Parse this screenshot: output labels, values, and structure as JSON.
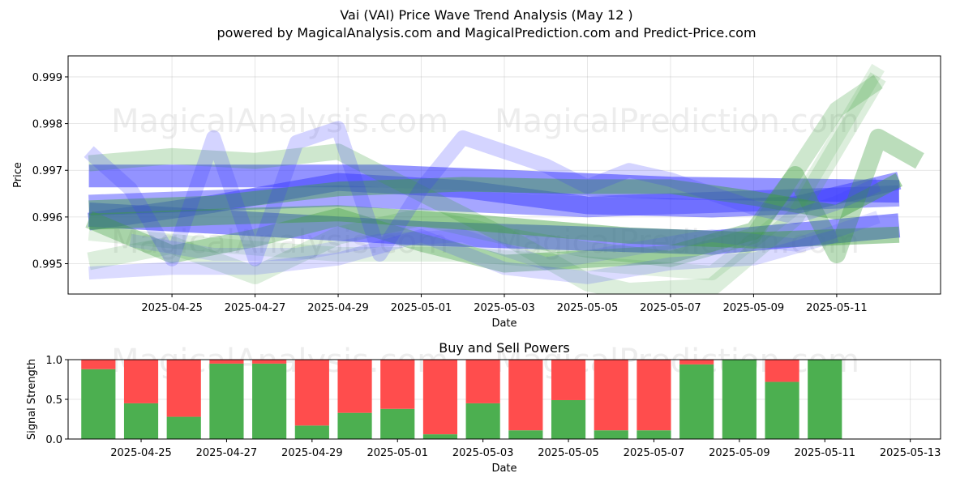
{
  "header": {
    "title": "Vai (VAI) Price Wave Trend Analysis (May 12 )",
    "subtitle": "powered by MagicalAnalysis.com and MagicalPrediction.com and Predict-Price.com"
  },
  "watermarks": [
    "MagicalAnalysis.com",
    "MagicalPrediction.com"
  ],
  "colors": {
    "buy": "#4caf50",
    "sell": "#ff4d4d",
    "blue": "#3a3aff",
    "green": "#3c9e3c"
  },
  "chart_data": [
    {
      "type": "line",
      "title": "",
      "xlabel": "Date",
      "ylabel": "Price",
      "ylim": [
        0.99435,
        0.99945
      ],
      "xlim": [
        "2025-04-22T12:00",
        "2025-05-13T12:00"
      ],
      "x_ticks": [
        "2025-04-25",
        "2025-04-27",
        "2025-04-29",
        "2025-05-01",
        "2025-05-03",
        "2025-05-05",
        "2025-05-07",
        "2025-05-09",
        "2025-05-11"
      ],
      "y_ticks": [
        "0.995",
        "0.996",
        "0.997",
        "0.998",
        "0.999"
      ],
      "grid": true,
      "series": [
        {
          "color": "blue",
          "opacity": 0.55,
          "width": 30,
          "points": [
            [
              "2025-04-23",
              0.99605
            ],
            [
              "2025-05-01",
              0.99565
            ],
            [
              "2025-05-08",
              0.99545
            ],
            [
              "2025-05-12T12:00",
              0.99582
            ]
          ]
        },
        {
          "color": "blue",
          "opacity": 0.55,
          "width": 28,
          "points": [
            [
              "2025-04-23",
              0.99688
            ],
            [
              "2025-04-30",
              0.99688
            ],
            [
              "2025-05-07",
              0.99662
            ],
            [
              "2025-05-12T12:00",
              0.99655
            ]
          ]
        },
        {
          "color": "blue",
          "opacity": 0.45,
          "width": 26,
          "points": [
            [
              "2025-04-23",
              0.99625
            ],
            [
              "2025-04-29",
              0.99645
            ],
            [
              "2025-05-05",
              0.99622
            ],
            [
              "2025-05-12T12:00",
              0.99645
            ]
          ]
        },
        {
          "color": "blue",
          "opacity": 0.5,
          "width": 22,
          "points": [
            [
              "2025-04-23",
              0.9959
            ],
            [
              "2025-04-26",
              0.99628
            ],
            [
              "2025-04-29",
              0.99675
            ],
            [
              "2025-05-02",
              0.9966
            ],
            [
              "2025-05-05",
              0.99625
            ],
            [
              "2025-05-08",
              0.99618
            ],
            [
              "2025-05-10",
              0.99625
            ],
            [
              "2025-05-12T12:00",
              0.99678
            ]
          ]
        },
        {
          "color": "green",
          "opacity": 0.45,
          "width": 20,
          "points": [
            [
              "2025-04-23",
              0.9959
            ],
            [
              "2025-04-26",
              0.996
            ],
            [
              "2025-04-29",
              0.99608
            ],
            [
              "2025-05-02",
              0.9959
            ],
            [
              "2025-05-06",
              0.9956
            ],
            [
              "2025-05-09",
              0.9955
            ],
            [
              "2025-05-12T12:00",
              0.99562
            ]
          ]
        },
        {
          "color": "green",
          "opacity": 0.45,
          "width": 18,
          "points": [
            [
              "2025-04-23",
              0.9962
            ],
            [
              "2025-04-26",
              0.9963
            ],
            [
              "2025-04-29",
              0.9966
            ],
            [
              "2025-05-02",
              0.9967
            ],
            [
              "2025-05-05",
              0.99665
            ],
            [
              "2025-05-07",
              0.99665
            ],
            [
              "2025-05-09",
              0.9964
            ],
            [
              "2025-05-11",
              0.9961
            ],
            [
              "2025-05-12T12:00",
              0.9968
            ]
          ]
        },
        {
          "color": "green",
          "opacity": 0.35,
          "width": 22,
          "points": [
            [
              "2025-04-23",
              0.99595
            ],
            [
              "2025-04-25",
              0.9952
            ],
            [
              "2025-04-27",
              0.99555
            ],
            [
              "2025-04-29",
              0.996
            ],
            [
              "2025-05-01",
              0.99545
            ],
            [
              "2025-05-03",
              0.995
            ],
            [
              "2025-05-05",
              0.9951
            ],
            [
              "2025-05-07",
              0.9952
            ],
            [
              "2025-05-09",
              0.9957
            ],
            [
              "2025-05-10",
              0.9969
            ],
            [
              "2025-05-11",
              0.9952
            ],
            [
              "2025-05-12",
              0.9977
            ],
            [
              "2025-05-13",
              0.9972
            ]
          ]
        },
        {
          "color": "green",
          "opacity": 0.25,
          "width": 20,
          "points": [
            [
              "2025-04-23",
              0.99715
            ],
            [
              "2025-04-25",
              0.9973
            ],
            [
              "2025-04-27",
              0.9972
            ],
            [
              "2025-04-29",
              0.9974
            ],
            [
              "2025-05-01",
              0.9965
            ],
            [
              "2025-05-03",
              0.9956
            ],
            [
              "2025-05-05",
              0.9953
            ],
            [
              "2025-05-07",
              0.9951
            ],
            [
              "2025-05-09",
              0.9956
            ],
            [
              "2025-05-11",
              0.9983
            ],
            [
              "2025-05-12",
              0.9989
            ]
          ]
        },
        {
          "color": "green",
          "opacity": 0.18,
          "width": 22,
          "points": [
            [
              "2025-04-23",
              0.99505
            ],
            [
              "2025-04-25",
              0.9954
            ],
            [
              "2025-04-27",
              0.99475
            ],
            [
              "2025-04-29",
              0.9956
            ],
            [
              "2025-05-01",
              0.996
            ],
            [
              "2025-05-03",
              0.9956
            ],
            [
              "2025-05-05",
              0.9946
            ],
            [
              "2025-05-06",
              0.9944
            ],
            [
              "2025-05-08",
              0.9945
            ],
            [
              "2025-05-10",
              0.996
            ],
            [
              "2025-05-12",
              0.999
            ]
          ]
        },
        {
          "color": "green",
          "opacity": 0.15,
          "width": 18,
          "points": [
            [
              "2025-04-23",
              0.99565
            ],
            [
              "2025-04-26",
              0.9954
            ],
            [
              "2025-04-29",
              0.9952
            ],
            [
              "2025-05-02",
              0.9952
            ],
            [
              "2025-05-05",
              0.995
            ],
            [
              "2025-05-08",
              0.9948
            ],
            [
              "2025-05-10",
              0.9962
            ],
            [
              "2025-05-12",
              0.9992
            ]
          ]
        },
        {
          "color": "blue",
          "opacity": 0.22,
          "width": 18,
          "points": [
            [
              "2025-04-23",
              0.9974
            ],
            [
              "2025-04-24",
              0.9966
            ],
            [
              "2025-04-25",
              0.9951
            ],
            [
              "2025-04-26",
              0.9977
            ],
            [
              "2025-04-27",
              0.9951
            ],
            [
              "2025-04-28",
              0.9976
            ],
            [
              "2025-04-29",
              0.9979
            ],
            [
              "2025-04-30",
              0.9952
            ],
            [
              "2025-05-01",
              0.9966
            ],
            [
              "2025-05-02",
              0.9977
            ],
            [
              "2025-05-03",
              0.9974
            ],
            [
              "2025-05-04",
              0.9971
            ],
            [
              "2025-05-05",
              0.99665
            ],
            [
              "2025-05-06",
              0.997
            ],
            [
              "2025-05-07",
              0.9968
            ],
            [
              "2025-05-08",
              0.9965
            ],
            [
              "2025-05-09",
              0.9962
            ],
            [
              "2025-05-10",
              0.996
            ],
            [
              "2025-05-11",
              0.9963
            ],
            [
              "2025-05-12",
              0.9967
            ]
          ]
        },
        {
          "color": "blue",
          "opacity": 0.18,
          "width": 16,
          "points": [
            [
              "2025-04-23",
              0.9948
            ],
            [
              "2025-04-25",
              0.9949
            ],
            [
              "2025-04-27",
              0.9949
            ],
            [
              "2025-04-29",
              0.9951
            ],
            [
              "2025-05-01",
              0.9956
            ],
            [
              "2025-05-03",
              0.9949
            ],
            [
              "2025-05-05",
              0.9947
            ],
            [
              "2025-05-07",
              0.995
            ],
            [
              "2025-05-09",
              0.9951
            ],
            [
              "2025-05-11",
              0.9956
            ]
          ]
        },
        {
          "color": "blue",
          "opacity": 0.15,
          "width": 16,
          "points": [
            [
              "2025-04-24",
              0.9955
            ],
            [
              "2025-04-26",
              0.9952
            ],
            [
              "2025-04-28",
              0.9952
            ],
            [
              "2025-04-30",
              0.9955
            ],
            [
              "2025-05-02",
              0.9956
            ],
            [
              "2025-05-04",
              0.995
            ],
            [
              "2025-05-06",
              0.9953
            ],
            [
              "2025-05-08",
              0.9956
            ],
            [
              "2025-05-10",
              0.9954
            ],
            [
              "2025-05-12",
              0.996
            ]
          ]
        }
      ]
    },
    {
      "type": "bar",
      "title": "Buy and Sell Powers",
      "xlabel": "Date",
      "ylabel": "Signal Strength",
      "ylim": [
        0.0,
        1.0
      ],
      "y_ticks": [
        "0.0",
        "0.5",
        "1.0"
      ],
      "x_ticks": [
        "2025-04-25",
        "2025-04-27",
        "2025-04-29",
        "2025-05-01",
        "2025-05-03",
        "2025-05-05",
        "2025-05-07",
        "2025-05-09",
        "2025-05-11",
        "2025-05-13"
      ],
      "xlim": [
        "2025-04-23T07:00",
        "2025-05-13T17:00"
      ],
      "grid": true,
      "categories": [
        "2025-04-24",
        "2025-04-25",
        "2025-04-26",
        "2025-04-27",
        "2025-04-28",
        "2025-04-29",
        "2025-04-30",
        "2025-05-01",
        "2025-05-02",
        "2025-05-03",
        "2025-05-04",
        "2025-05-05",
        "2025-05-06",
        "2025-05-07",
        "2025-05-08",
        "2025-05-09",
        "2025-05-10",
        "2025-05-11",
        "2025-05-12"
      ],
      "series": [
        {
          "name": "Buy",
          "values": [
            0.88,
            0.45,
            0.28,
            0.95,
            0.95,
            0.17,
            0.33,
            0.38,
            0.06,
            0.45,
            0.11,
            0.49,
            0.11,
            0.11,
            0.94,
            1.0,
            0.72,
            1.0,
            0.0
          ]
        },
        {
          "name": "Sell",
          "values": [
            0.12,
            0.55,
            0.72,
            0.05,
            0.05,
            0.83,
            0.67,
            0.62,
            0.94,
            0.55,
            0.89,
            0.51,
            0.89,
            0.89,
            0.06,
            0.0,
            0.28,
            0.0,
            0.0
          ]
        }
      ]
    }
  ]
}
